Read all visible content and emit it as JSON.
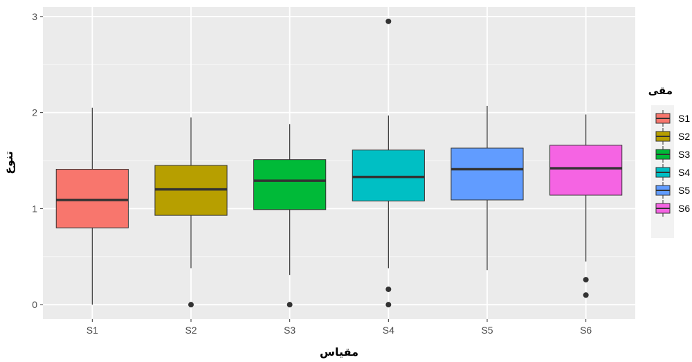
{
  "chart_data": {
    "type": "boxplot",
    "title": "",
    "xlabel": "مقیاس",
    "ylabel": "تنوع",
    "ylim": [
      -0.15,
      3.1
    ],
    "yticks": [
      0,
      1,
      2,
      3
    ],
    "ytick_labels": [
      "0",
      "1",
      "2",
      "3"
    ],
    "grid": true,
    "legend": {
      "title": "مقی",
      "position": "right"
    },
    "categories": [
      "S1",
      "S2",
      "S3",
      "S4",
      "S5",
      "S6"
    ],
    "series": [
      {
        "name": "S1",
        "color": "#F8766D",
        "whisker_low": 0.0,
        "q1": 0.8,
        "median": 1.09,
        "q3": 1.41,
        "whisker_high": 2.05,
        "outliers": []
      },
      {
        "name": "S2",
        "color": "#B79F00",
        "whisker_low": 0.38,
        "q1": 0.93,
        "median": 1.2,
        "q3": 1.45,
        "whisker_high": 1.95,
        "outliers": [
          0.0
        ]
      },
      {
        "name": "S3",
        "color": "#00BA38",
        "whisker_low": 0.31,
        "q1": 0.99,
        "median": 1.29,
        "q3": 1.51,
        "whisker_high": 1.88,
        "outliers": [
          0.0
        ]
      },
      {
        "name": "S4",
        "color": "#00BFC4",
        "whisker_low": 0.38,
        "q1": 1.08,
        "median": 1.33,
        "q3": 1.61,
        "whisker_high": 1.97,
        "outliers": [
          0.0,
          0.16,
          2.95
        ]
      },
      {
        "name": "S5",
        "color": "#619CFF",
        "whisker_low": 0.36,
        "q1": 1.09,
        "median": 1.41,
        "q3": 1.63,
        "whisker_high": 2.07,
        "outliers": []
      },
      {
        "name": "S6",
        "color": "#F564E3",
        "whisker_low": 0.45,
        "q1": 1.14,
        "median": 1.42,
        "q3": 1.66,
        "whisker_high": 1.98,
        "outliers": [
          0.1,
          0.26
        ]
      }
    ]
  }
}
